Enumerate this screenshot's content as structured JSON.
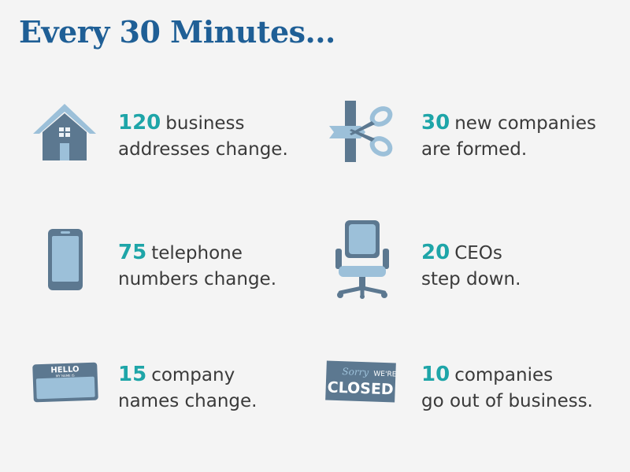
{
  "title": "Every 30 Minutes...",
  "colors": {
    "title": "#1f5f96",
    "accent": "#1ea5a8",
    "icon_dark": "#5c7890",
    "icon_light": "#9cc0d9",
    "text": "#3a3a3a"
  },
  "stats": [
    {
      "icon": "house-icon",
      "number": "120",
      "line1": "business",
      "line2": "addresses change."
    },
    {
      "icon": "scissors-ribbon-icon",
      "number": "30",
      "line1": "new companies",
      "line2": "are formed."
    },
    {
      "icon": "smartphone-icon",
      "number": "75",
      "line1": "telephone",
      "line2": "numbers change."
    },
    {
      "icon": "office-chair-icon",
      "number": "20",
      "line1": "CEOs",
      "line2": "step down."
    },
    {
      "icon": "name-tag-icon",
      "number": "15",
      "line1": "company",
      "line2": "names change."
    },
    {
      "icon": "closed-sign-icon",
      "number": "10",
      "line1": "companies",
      "line2": "go out of business."
    }
  ],
  "name_tag": {
    "hello": "HELLO",
    "sub": "MY NAME IS"
  },
  "closed_sign": {
    "sorry": "Sorry",
    "were": "WE'RE",
    "closed": "CLOSED"
  }
}
